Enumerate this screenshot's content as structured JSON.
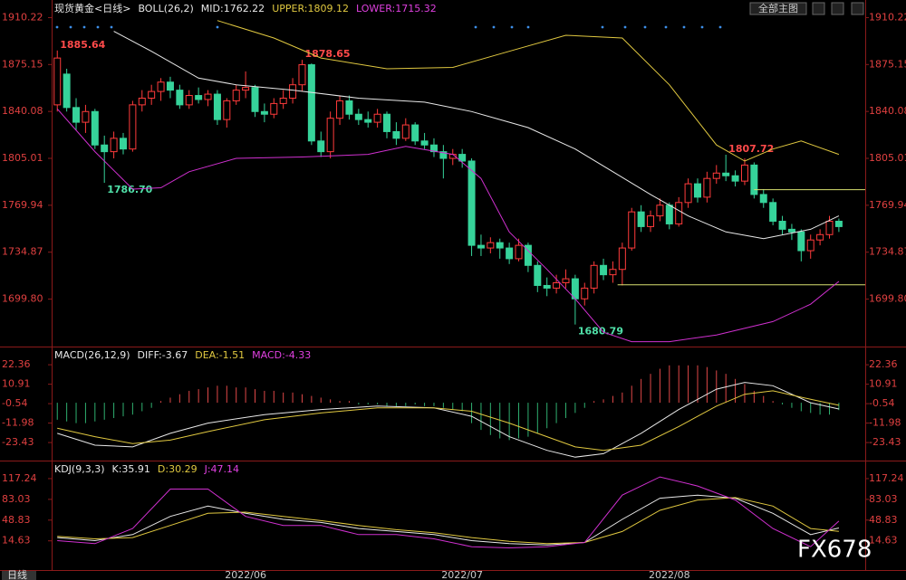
{
  "toolbar": {
    "button": "全部主图"
  },
  "period_tab": "日线",
  "watermark": "FX678",
  "chart_data": [
    {
      "type": "candlestick",
      "title": "现货黄金<日线>",
      "header": [
        {
          "text": "BOLL(26,2)",
          "color": "#e8e8e8"
        },
        {
          "text": "MID:1762.22",
          "color": "#e8e8e8"
        },
        {
          "text": "UPPER:1809.12",
          "color": "#e0c840"
        },
        {
          "text": "LOWER:1715.32",
          "color": "#e040e0"
        }
      ],
      "up_color": "#ff3b3b",
      "down_color": "#36d39a",
      "xlim": [
        -0.6,
        85.8
      ],
      "ylim": [
        1665,
        1920
      ],
      "yticks": [
        1910.22,
        1875.15,
        1840.08,
        1805.01,
        1769.94,
        1734.87,
        {
          "value": 1699.8,
          "label": "1699.80"
        }
      ],
      "open": [
        1845,
        1868,
        1843,
        1832,
        1840,
        1815,
        1810,
        1820,
        1812,
        1845,
        1850,
        1855,
        1862,
        1856,
        1845,
        1852,
        1849,
        1853,
        1834,
        1848,
        1856,
        1858,
        1840,
        1838,
        1846,
        1850,
        1860,
        1875,
        1818,
        1810,
        1835,
        1848,
        1838,
        1834,
        1832,
        1838,
        1825,
        1820,
        1830,
        1818,
        1815,
        1810,
        1805,
        1808,
        1803,
        1740,
        1738,
        1742,
        1738,
        1730,
        1740,
        1725,
        1710,
        1708,
        1712,
        1715,
        1700,
        1708,
        1725,
        1718,
        1722,
        1738,
        1765,
        1754,
        1762,
        1770,
        1756,
        1772,
        1786,
        1776,
        1790,
        1794,
        1792,
        1788,
        1800,
        1778,
        1772,
        1758,
        1752,
        1750,
        1736,
        1744,
        1748,
        1758
      ],
      "high": [
        1885.64,
        1872,
        1850,
        1845,
        1842,
        1822,
        1825,
        1824,
        1848,
        1856,
        1860,
        1865,
        1866,
        1860,
        1856,
        1858,
        1856,
        1856,
        1850,
        1860,
        1870,
        1860,
        1846,
        1850,
        1856,
        1865,
        1878.65,
        1876,
        1825,
        1840,
        1852,
        1852,
        1842,
        1840,
        1842,
        1840,
        1832,
        1835,
        1832,
        1824,
        1820,
        1815,
        1812,
        1812,
        1805,
        1748,
        1746,
        1745,
        1742,
        1745,
        1742,
        1728,
        1716,
        1718,
        1722,
        1718,
        1712,
        1728,
        1730,
        1728,
        1742,
        1768,
        1770,
        1766,
        1775,
        1772,
        1776,
        1790,
        1790,
        1795,
        1800,
        1807.72,
        1796,
        1805,
        1802,
        1782,
        1775,
        1762,
        1756,
        1752,
        1748,
        1752,
        1762,
        1760
      ],
      "low": [
        1840,
        1840,
        1826,
        1824,
        1812,
        1786.7,
        1805,
        1808,
        1810,
        1840,
        1845,
        1848,
        1850,
        1842,
        1842,
        1846,
        1844,
        1830,
        1828,
        1845,
        1850,
        1836,
        1832,
        1835,
        1842,
        1846,
        1855,
        1815,
        1806,
        1805,
        1830,
        1834,
        1830,
        1828,
        1828,
        1820,
        1815,
        1818,
        1815,
        1812,
        1806,
        1790,
        1800,
        1798,
        1732,
        1732,
        1734,
        1730,
        1726,
        1728,
        1720,
        1705,
        1702,
        1704,
        1708,
        1680.79,
        1695,
        1704,
        1714,
        1712,
        1710,
        1736,
        1750,
        1750,
        1758,
        1752,
        1754,
        1768,
        1772,
        1772,
        1786,
        1788,
        1784,
        1785,
        1775,
        1768,
        1755,
        1748,
        1744,
        1728,
        1730,
        1740,
        1745,
        1750
      ],
      "close": [
        1880,
        1843,
        1832,
        1840,
        1815,
        1810,
        1820,
        1812,
        1845,
        1850,
        1855,
        1862,
        1856,
        1845,
        1852,
        1849,
        1853,
        1834,
        1848,
        1856,
        1858,
        1840,
        1838,
        1846,
        1850,
        1860,
        1875,
        1818,
        1810,
        1835,
        1848,
        1838,
        1834,
        1832,
        1838,
        1825,
        1820,
        1830,
        1818,
        1815,
        1810,
        1805,
        1808,
        1803,
        1740,
        1738,
        1742,
        1738,
        1730,
        1740,
        1725,
        1710,
        1708,
        1712,
        1715,
        1700,
        1708,
        1725,
        1718,
        1722,
        1738,
        1765,
        1754,
        1762,
        1770,
        1756,
        1772,
        1786,
        1776,
        1790,
        1794,
        1792,
        1788,
        1800,
        1778,
        1772,
        1758,
        1752,
        1750,
        1736,
        1744,
        1748,
        1758,
        1754
      ],
      "series": [
        {
          "color": "#e0c840",
          "x": [
            17,
            23,
            28,
            35,
            42,
            48,
            54,
            60,
            65,
            70,
            73,
            76,
            79,
            83
          ],
          "values": [
            1908,
            1895,
            1880,
            1872,
            1873,
            1885,
            1897,
            1895,
            1860,
            1815,
            1803,
            1812,
            1818,
            1808
          ]
        },
        {
          "color": "#e8e8e8",
          "x": [
            6,
            10,
            15,
            19,
            25,
            32,
            39,
            44,
            50,
            55,
            59,
            63,
            67,
            71,
            75,
            80,
            83
          ],
          "values": [
            1900,
            1885,
            1865,
            1860,
            1856,
            1850,
            1847,
            1840,
            1828,
            1812,
            1795,
            1778,
            1762,
            1750,
            1745,
            1752,
            1762
          ]
        },
        {
          "color": "#d030d0",
          "x": [
            0,
            4,
            8,
            11,
            14,
            19,
            26,
            33,
            37,
            42,
            45,
            48,
            52,
            55,
            58,
            61,
            65,
            70,
            76,
            80,
            83
          ],
          "values": [
            1842,
            1810,
            1782,
            1783,
            1795,
            1805,
            1806,
            1808,
            1814,
            1808,
            1790,
            1750,
            1722,
            1700,
            1675,
            1668,
            1668,
            1673,
            1683,
            1696,
            1713
          ]
        }
      ],
      "annotations": [
        {
          "x": 0,
          "value": 1885.64
        },
        {
          "x": 5,
          "value": 1786.7,
          "label": "1786.70"
        },
        {
          "x": 26,
          "value": 1878.65
        },
        {
          "x": 55,
          "value": 1680.79
        },
        {
          "x": 71,
          "value": 1807.72
        }
      ],
      "levels": [
        {
          "value": 1781.6,
          "from": 74,
          "color": "#d8e070"
        },
        {
          "value": 1710.5,
          "from": 59.5,
          "color": "#d8e070"
        }
      ]
    },
    {
      "type": "macd",
      "title": "MACD(26,12,9)",
      "header": [
        {
          "text": "DIFF:-3.67",
          "color": "#e8e8e8"
        },
        {
          "text": "DEA:-1.51",
          "color": "#e0c840"
        },
        {
          "text": "MACD:-4.33",
          "color": "#e040e0"
        }
      ],
      "up_color": "#e04848",
      "down_color": "#2fb070",
      "xlim": [
        -0.6,
        85.8
      ],
      "ylim": [
        -33.5,
        32
      ],
      "yticks": [
        22.36,
        10.91,
        -0.54,
        -11.98,
        -23.43
      ],
      "values": [
        -10,
        -11,
        -12,
        -12,
        -11,
        -10,
        -9,
        -8,
        -7,
        -5,
        -3,
        1,
        3,
        5,
        7,
        8,
        9,
        10,
        10,
        9,
        9,
        8,
        7,
        7,
        6,
        6,
        5,
        4,
        3,
        2,
        1,
        1,
        -1,
        -1,
        -1,
        -2,
        -2,
        -2,
        -1,
        -2,
        -2,
        -3,
        -4,
        -5,
        -12,
        -16,
        -19,
        -21,
        -22,
        -21,
        -20,
        -18,
        -15,
        -12,
        -9,
        -6,
        -3,
        1,
        2,
        4,
        6,
        10,
        14,
        17,
        20,
        22,
        22,
        22,
        22,
        21,
        19,
        17,
        14,
        11,
        7,
        4,
        1,
        -1,
        -3,
        -5,
        -6,
        -7,
        -7,
        -4.33
      ],
      "series": [
        {
          "color": "#e8e8e8",
          "x": [
            0,
            4,
            8,
            12,
            16,
            22,
            28,
            34,
            40,
            44,
            48,
            52,
            55,
            58,
            62,
            66,
            70,
            73,
            76,
            80,
            83
          ],
          "values": [
            -18,
            -25,
            -26,
            -18,
            -12,
            -7,
            -4,
            -2,
            -3,
            -8,
            -20,
            -28,
            -32,
            -30,
            -18,
            -4,
            8,
            12,
            10,
            0,
            -3.67
          ]
        },
        {
          "color": "#e0c840",
          "x": [
            0,
            4,
            8,
            12,
            16,
            22,
            28,
            34,
            40,
            44,
            48,
            52,
            55,
            58,
            62,
            66,
            70,
            73,
            76,
            80,
            83
          ],
          "values": [
            -15,
            -20,
            -24,
            -22,
            -17,
            -10,
            -6,
            -3,
            -3,
            -5,
            -12,
            -20,
            -26,
            -28,
            -25,
            -14,
            -2,
            5,
            7,
            2,
            -1.51
          ]
        }
      ]
    },
    {
      "type": "kdj",
      "title": "KDJ(9,3,3)",
      "header": [
        {
          "text": "K:35.91",
          "color": "#e8e8e8"
        },
        {
          "text": "D:30.29",
          "color": "#e0c840"
        },
        {
          "text": "J:47.14",
          "color": "#e040e0"
        }
      ],
      "xlim": [
        -0.6,
        85.8
      ],
      "ylim": [
        -33.5,
        144
      ],
      "yticks": [
        117.24,
        83.03,
        48.83,
        14.63
      ],
      "xticks": [
        {
          "value": 20,
          "label": "2022/06"
        },
        {
          "value": 43,
          "label": "2022/07"
        },
        {
          "value": 65,
          "label": "2022/08"
        }
      ],
      "series": [
        {
          "color": "#e8e8e8",
          "x": [
            0,
            4,
            8,
            12,
            16,
            20,
            24,
            28,
            32,
            36,
            40,
            44,
            48,
            52,
            56,
            60,
            64,
            68,
            72,
            76,
            80,
            83
          ],
          "values": [
            20,
            15,
            25,
            55,
            72,
            60,
            50,
            45,
            35,
            30,
            25,
            15,
            10,
            8,
            12,
            50,
            85,
            90,
            85,
            60,
            25,
            35.91
          ]
        },
        {
          "color": "#e0c840",
          "x": [
            0,
            4,
            8,
            12,
            16,
            20,
            24,
            28,
            32,
            36,
            40,
            44,
            48,
            52,
            56,
            60,
            64,
            68,
            72,
            76,
            80,
            83
          ],
          "values": [
            22,
            18,
            20,
            40,
            60,
            62,
            55,
            48,
            40,
            33,
            28,
            20,
            14,
            10,
            12,
            30,
            65,
            82,
            86,
            72,
            35,
            30.29
          ]
        },
        {
          "color": "#d030d0",
          "x": [
            0,
            4,
            8,
            12,
            16,
            20,
            24,
            28,
            32,
            36,
            40,
            44,
            48,
            52,
            56,
            60,
            64,
            68,
            72,
            76,
            80,
            83
          ],
          "values": [
            15,
            10,
            35,
            100,
            100,
            55,
            40,
            40,
            25,
            25,
            18,
            5,
            3,
            5,
            12,
            90,
            120,
            105,
            82,
            35,
            5,
            47.14
          ]
        }
      ]
    }
  ]
}
